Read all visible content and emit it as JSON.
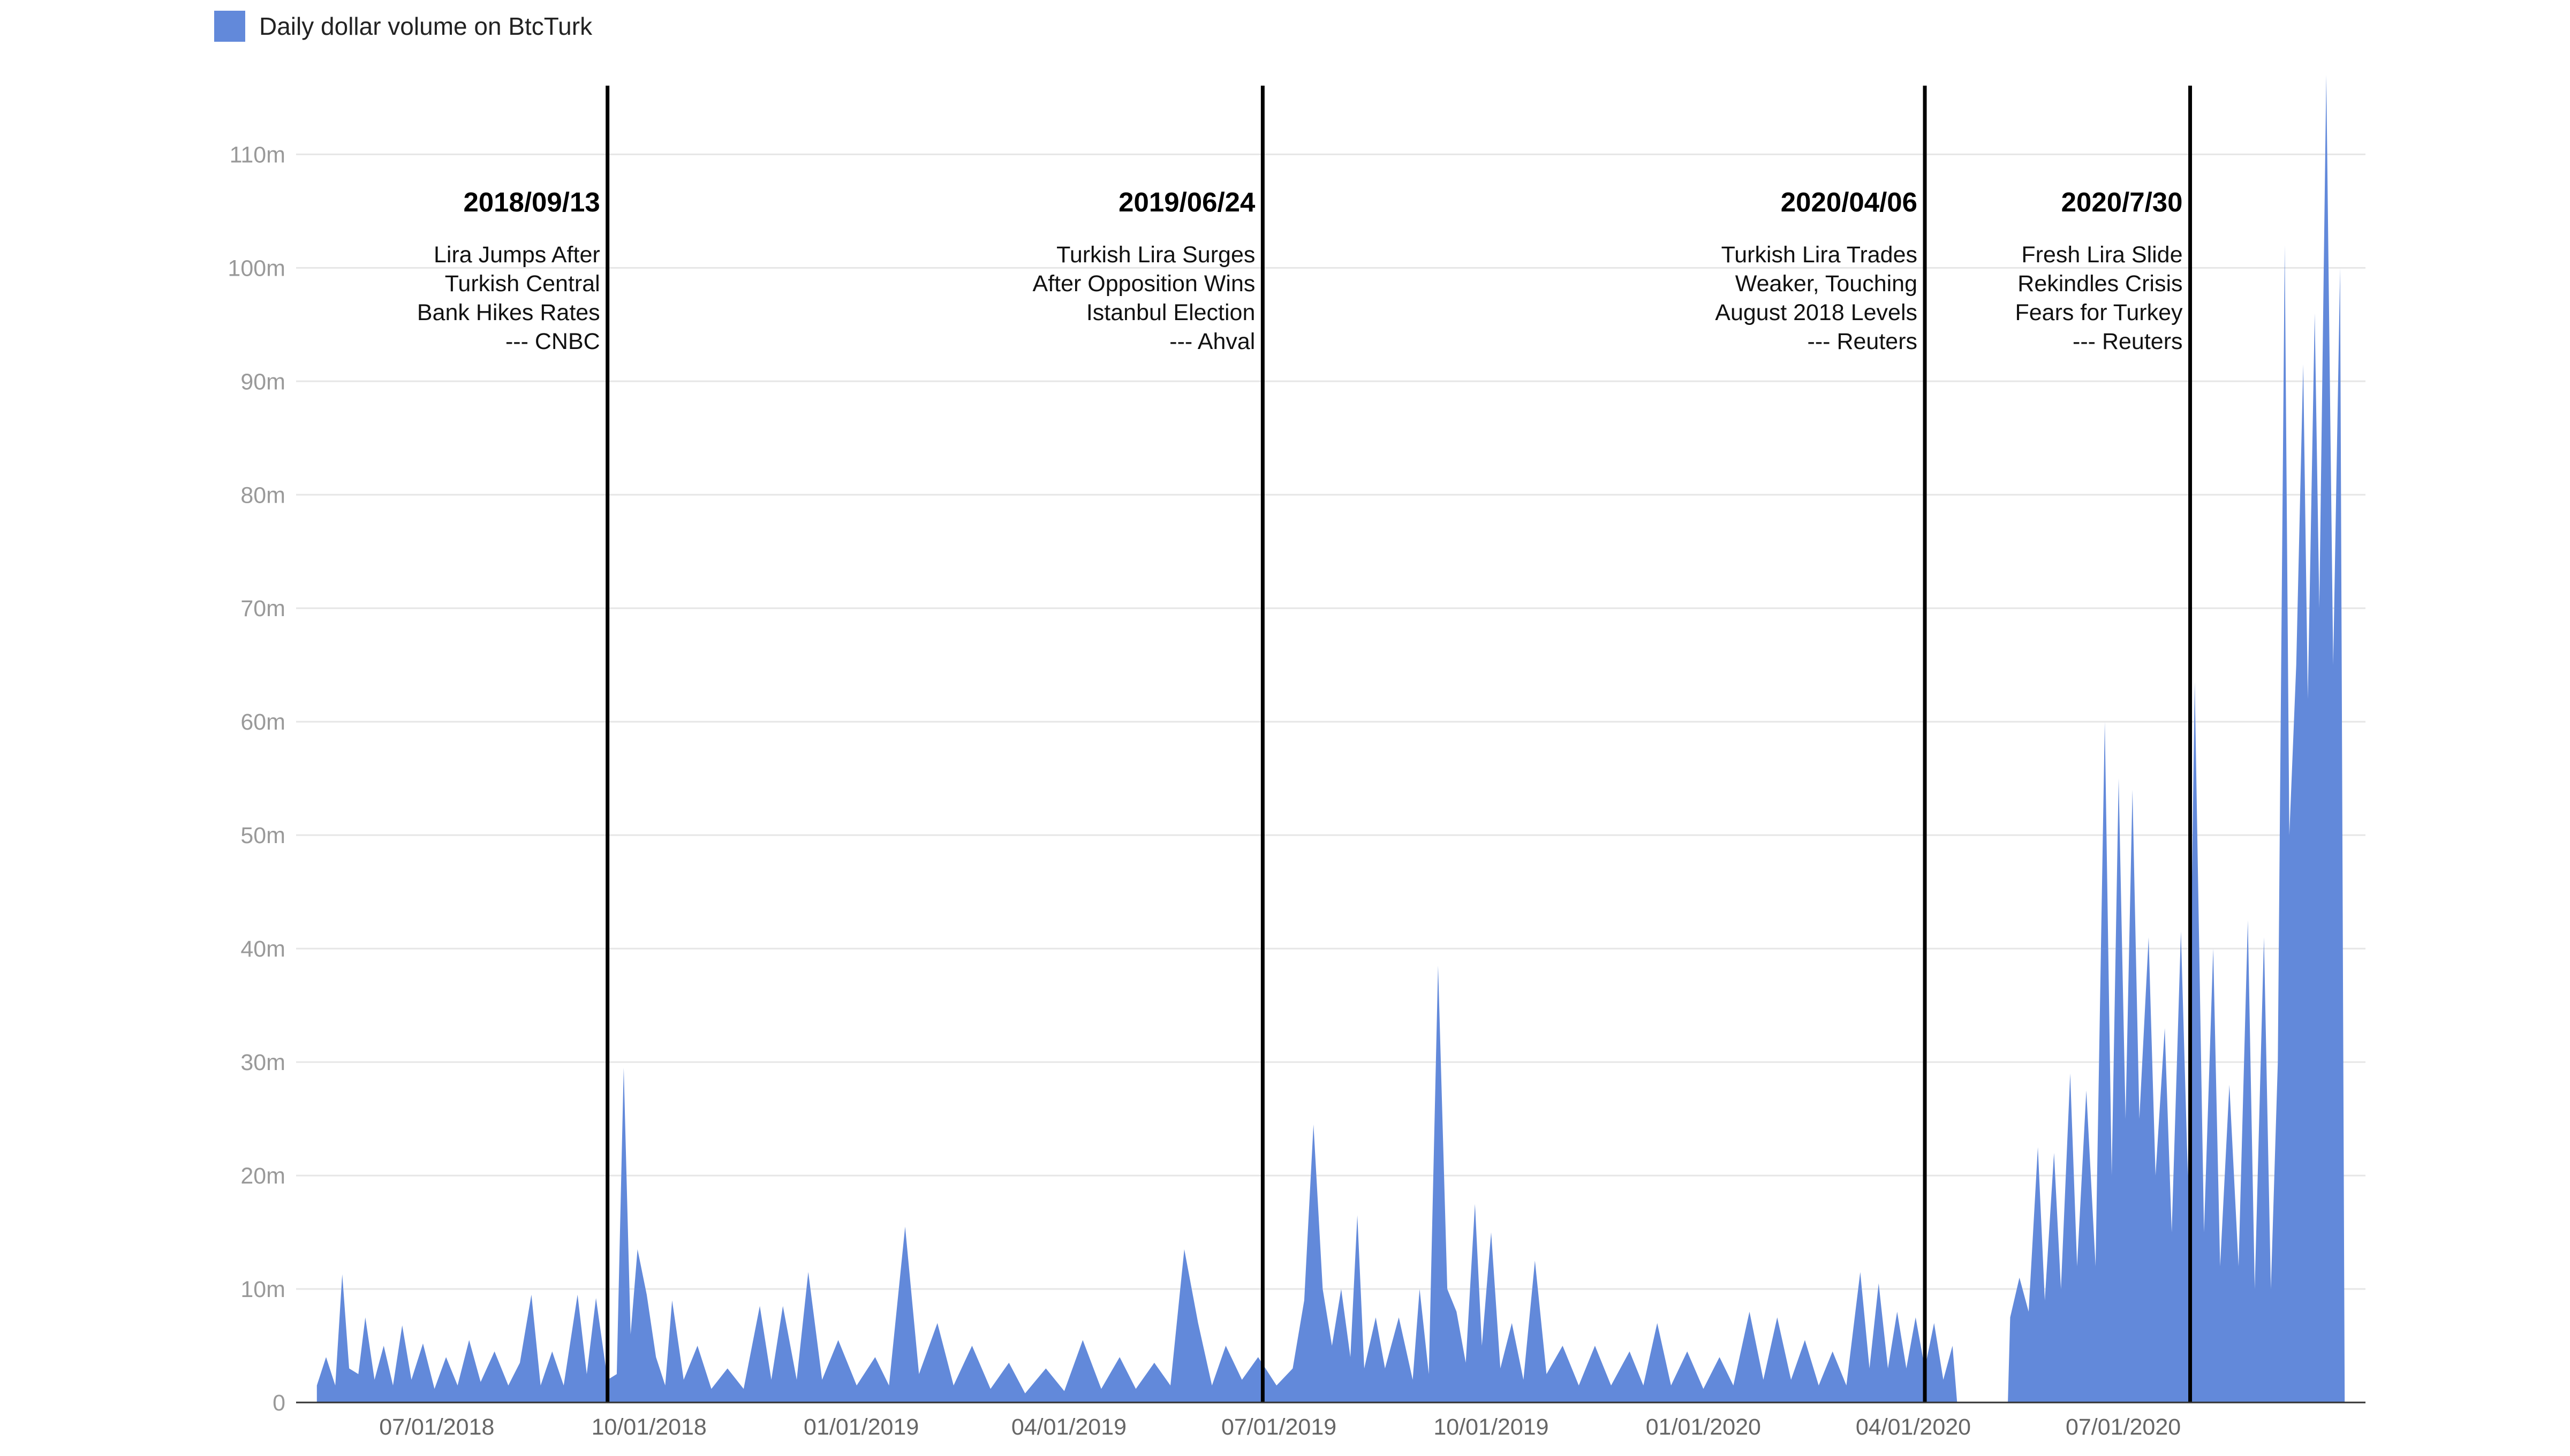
{
  "colors": {
    "series": "#6289da",
    "grid": "#e6e6e6",
    "event": "#000000",
    "axis": "#333333"
  },
  "legend": {
    "label": "Daily dollar volume on BtcTurk",
    "position": "top-left"
  },
  "chart_data": {
    "type": "area",
    "title": "",
    "xlabel": "",
    "ylabel": "",
    "ylim": [
      0,
      117
    ],
    "xlim": [
      "2018-05-01",
      "2020-10-14"
    ],
    "y_unit_suffix": "m",
    "y_ticks": [
      {
        "value": 0,
        "label": "0"
      },
      {
        "value": 10,
        "label": "10m"
      },
      {
        "value": 20,
        "label": "20m"
      },
      {
        "value": 30,
        "label": "30m"
      },
      {
        "value": 40,
        "label": "40m"
      },
      {
        "value": 50,
        "label": "50m"
      },
      {
        "value": 60,
        "label": "60m"
      },
      {
        "value": 70,
        "label": "70m"
      },
      {
        "value": 80,
        "label": "80m"
      },
      {
        "value": 90,
        "label": "90m"
      },
      {
        "value": 100,
        "label": "100m"
      },
      {
        "value": 110,
        "label": "110m"
      }
    ],
    "x_ticks": [
      {
        "date": "2018-07-01",
        "label": "07/01/2018"
      },
      {
        "date": "2018-10-01",
        "label": "10/01/2018"
      },
      {
        "date": "2019-01-01",
        "label": "01/01/2019"
      },
      {
        "date": "2019-04-01",
        "label": "04/01/2019"
      },
      {
        "date": "2019-07-01",
        "label": "07/01/2019"
      },
      {
        "date": "2019-10-01",
        "label": "10/01/2019"
      },
      {
        "date": "2020-01-01",
        "label": "01/01/2020"
      },
      {
        "date": "2020-04-01",
        "label": "04/01/2020"
      },
      {
        "date": "2020-07-01",
        "label": "07/01/2020"
      }
    ],
    "grid": true,
    "series": [
      {
        "name": "Daily dollar volume on BtcTurk",
        "points": [
          [
            "2018-05-10",
            1.5
          ],
          [
            "2018-05-14",
            4
          ],
          [
            "2018-05-18",
            1.5
          ],
          [
            "2018-05-21",
            11.3
          ],
          [
            "2018-05-24",
            3
          ],
          [
            "2018-05-28",
            2.5
          ],
          [
            "2018-05-31",
            7.5
          ],
          [
            "2018-06-04",
            2
          ],
          [
            "2018-06-08",
            5
          ],
          [
            "2018-06-12",
            1.5
          ],
          [
            "2018-06-16",
            6.8
          ],
          [
            "2018-06-20",
            2
          ],
          [
            "2018-06-25",
            5.2
          ],
          [
            "2018-06-30",
            1.2
          ],
          [
            "2018-07-05",
            4
          ],
          [
            "2018-07-10",
            1.5
          ],
          [
            "2018-07-15",
            5.5
          ],
          [
            "2018-07-20",
            1.8
          ],
          [
            "2018-07-26",
            4.5
          ],
          [
            "2018-08-01",
            1.5
          ],
          [
            "2018-08-06",
            3.5
          ],
          [
            "2018-08-11",
            9.5
          ],
          [
            "2018-08-15",
            1.5
          ],
          [
            "2018-08-20",
            4.5
          ],
          [
            "2018-08-25",
            1.5
          ],
          [
            "2018-08-31",
            9.5
          ],
          [
            "2018-09-04",
            2.5
          ],
          [
            "2018-09-08",
            9.2
          ],
          [
            "2018-09-13",
            2
          ],
          [
            "2018-09-17",
            2.5
          ],
          [
            "2018-09-20",
            29.5
          ],
          [
            "2018-09-23",
            6
          ],
          [
            "2018-09-26",
            13.5
          ],
          [
            "2018-09-30",
            9.5
          ],
          [
            "2018-10-04",
            4
          ],
          [
            "2018-10-08",
            1.5
          ],
          [
            "2018-10-11",
            9
          ],
          [
            "2018-10-16",
            2
          ],
          [
            "2018-10-22",
            5
          ],
          [
            "2018-10-28",
            1.2
          ],
          [
            "2018-11-04",
            3
          ],
          [
            "2018-11-11",
            1.2
          ],
          [
            "2018-11-18",
            8.5
          ],
          [
            "2018-11-23",
            2
          ],
          [
            "2018-11-28",
            8.5
          ],
          [
            "2018-12-04",
            2
          ],
          [
            "2018-12-09",
            11.5
          ],
          [
            "2018-12-15",
            2
          ],
          [
            "2018-12-22",
            5.5
          ],
          [
            "2018-12-30",
            1.5
          ],
          [
            "2019-01-07",
            4
          ],
          [
            "2019-01-13",
            1.5
          ],
          [
            "2019-01-20",
            15.5
          ],
          [
            "2019-01-26",
            2.5
          ],
          [
            "2019-02-03",
            7
          ],
          [
            "2019-02-10",
            1.5
          ],
          [
            "2019-02-18",
            5
          ],
          [
            "2019-02-26",
            1.2
          ],
          [
            "2019-03-06",
            3.5
          ],
          [
            "2019-03-13",
            0.8
          ],
          [
            "2019-03-22",
            3
          ],
          [
            "2019-03-30",
            1
          ],
          [
            "2019-04-07",
            5.5
          ],
          [
            "2019-04-15",
            1.2
          ],
          [
            "2019-04-23",
            4
          ],
          [
            "2019-04-30",
            1.2
          ],
          [
            "2019-05-08",
            3.5
          ],
          [
            "2019-05-15",
            1.5
          ],
          [
            "2019-05-21",
            13.5
          ],
          [
            "2019-05-27",
            7
          ],
          [
            "2019-06-02",
            1.5
          ],
          [
            "2019-06-08",
            5
          ],
          [
            "2019-06-15",
            2
          ],
          [
            "2019-06-22",
            4
          ],
          [
            "2019-06-30",
            1.5
          ],
          [
            "2019-07-07",
            3
          ],
          [
            "2019-07-12",
            9
          ],
          [
            "2019-07-16",
            24.5
          ],
          [
            "2019-07-20",
            10
          ],
          [
            "2019-07-24",
            5
          ],
          [
            "2019-07-28",
            10
          ],
          [
            "2019-08-01",
            4
          ],
          [
            "2019-08-04",
            16.5
          ],
          [
            "2019-08-07",
            3
          ],
          [
            "2019-08-12",
            7.5
          ],
          [
            "2019-08-16",
            3
          ],
          [
            "2019-08-22",
            7.5
          ],
          [
            "2019-08-28",
            2
          ],
          [
            "2019-08-31",
            10
          ],
          [
            "2019-09-04",
            2.5
          ],
          [
            "2019-09-08",
            38.5
          ],
          [
            "2019-09-12",
            10
          ],
          [
            "2019-09-16",
            8
          ],
          [
            "2019-09-20",
            3.5
          ],
          [
            "2019-09-24",
            17.5
          ],
          [
            "2019-09-27",
            5
          ],
          [
            "2019-10-01",
            15
          ],
          [
            "2019-10-05",
            3
          ],
          [
            "2019-10-10",
            7
          ],
          [
            "2019-10-15",
            2
          ],
          [
            "2019-10-20",
            12.5
          ],
          [
            "2019-10-25",
            2.5
          ],
          [
            "2019-11-01",
            5
          ],
          [
            "2019-11-08",
            1.5
          ],
          [
            "2019-11-15",
            5
          ],
          [
            "2019-11-22",
            1.5
          ],
          [
            "2019-11-30",
            4.5
          ],
          [
            "2019-12-06",
            1.5
          ],
          [
            "2019-12-12",
            7
          ],
          [
            "2019-12-18",
            1.5
          ],
          [
            "2019-12-25",
            4.5
          ],
          [
            "2020-01-01",
            1.2
          ],
          [
            "2020-01-08",
            4
          ],
          [
            "2020-01-14",
            1.5
          ],
          [
            "2020-01-21",
            8
          ],
          [
            "2020-01-27",
            2
          ],
          [
            "2020-02-02",
            7.5
          ],
          [
            "2020-02-08",
            2
          ],
          [
            "2020-02-14",
            5.5
          ],
          [
            "2020-02-20",
            1.5
          ],
          [
            "2020-02-26",
            4.5
          ],
          [
            "2020-03-03",
            1.5
          ],
          [
            "2020-03-09",
            11.5
          ],
          [
            "2020-03-13",
            3
          ],
          [
            "2020-03-17",
            10.5
          ],
          [
            "2020-03-21",
            3
          ],
          [
            "2020-03-25",
            8
          ],
          [
            "2020-03-29",
            3
          ],
          [
            "2020-04-02",
            7.5
          ],
          [
            "2020-04-06",
            3
          ],
          [
            "2020-04-10",
            7
          ],
          [
            "2020-04-14",
            2
          ],
          [
            "2020-04-18",
            5
          ],
          [
            "2020-04-20",
            0
          ],
          [
            "2020-05-12",
            0
          ],
          [
            "2020-05-13",
            7.5
          ],
          [
            "2020-05-17",
            11
          ],
          [
            "2020-05-21",
            8
          ],
          [
            "2020-05-25",
            22.5
          ],
          [
            "2020-05-28",
            9
          ],
          [
            "2020-06-01",
            22
          ],
          [
            "2020-06-04",
            10
          ],
          [
            "2020-06-08",
            29
          ],
          [
            "2020-06-11",
            12
          ],
          [
            "2020-06-15",
            27.5
          ],
          [
            "2020-06-19",
            12
          ],
          [
            "2020-06-23",
            60
          ],
          [
            "2020-06-26",
            20
          ],
          [
            "2020-06-29",
            55
          ],
          [
            "2020-07-02",
            25
          ],
          [
            "2020-07-05",
            54
          ],
          [
            "2020-07-08",
            25
          ],
          [
            "2020-07-12",
            41
          ],
          [
            "2020-07-15",
            20
          ],
          [
            "2020-07-19",
            33
          ],
          [
            "2020-07-22",
            15
          ],
          [
            "2020-07-26",
            41.5
          ],
          [
            "2020-07-29",
            20
          ],
          [
            "2020-08-01",
            63.5
          ],
          [
            "2020-08-05",
            15
          ],
          [
            "2020-08-09",
            40
          ],
          [
            "2020-08-12",
            12
          ],
          [
            "2020-08-16",
            28
          ],
          [
            "2020-08-20",
            12
          ],
          [
            "2020-08-24",
            42.5
          ],
          [
            "2020-08-27",
            10
          ],
          [
            "2020-08-31",
            41
          ],
          [
            "2020-09-03",
            10
          ],
          [
            "2020-09-06",
            30
          ],
          [
            "2020-09-09",
            102
          ],
          [
            "2020-09-11",
            50
          ],
          [
            "2020-09-14",
            65
          ],
          [
            "2020-09-17",
            91.5
          ],
          [
            "2020-09-19",
            62
          ],
          [
            "2020-09-22",
            96
          ],
          [
            "2020-09-24",
            70
          ],
          [
            "2020-09-27",
            117
          ],
          [
            "2020-09-30",
            65
          ],
          [
            "2020-10-03",
            100
          ],
          [
            "2020-10-05",
            0
          ]
        ]
      }
    ],
    "annotations": [
      {
        "date": "2018-09-13",
        "label": "2018/09/13",
        "lines": [
          "Lira Jumps After",
          "Turkish Central",
          "Bank Hikes Rates",
          "--- CNBC"
        ]
      },
      {
        "date": "2019-06-24",
        "label": "2019/06/24",
        "lines": [
          "Turkish Lira Surges",
          "After Opposition Wins",
          "Istanbul Election",
          "--- Ahval"
        ]
      },
      {
        "date": "2020-04-06",
        "label": "2020/04/06",
        "lines": [
          "Turkish Lira Trades",
          "Weaker, Touching",
          "August 2018 Levels",
          "--- Reuters"
        ]
      },
      {
        "date": "2020-07-30",
        "label": "2020/7/30",
        "lines": [
          "Fresh Lira Slide",
          "Rekindles Crisis",
          "Fears for Turkey",
          "--- Reuters"
        ]
      }
    ]
  }
}
